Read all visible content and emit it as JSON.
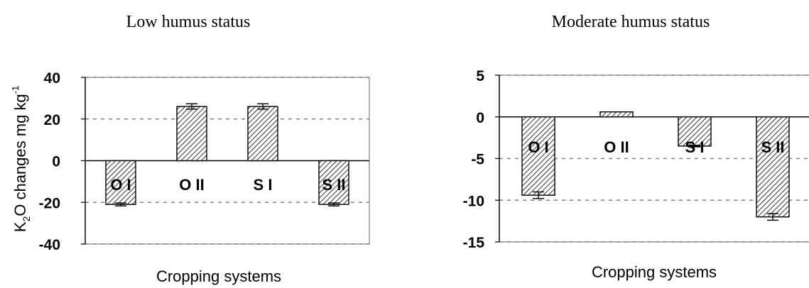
{
  "chart_data": [
    {
      "type": "bar",
      "title": "Low humus status",
      "xlabel": "Cropping systems",
      "ylabel_parts": [
        "K",
        "2",
        "O changes  mg kg",
        "-1"
      ],
      "ylim": [
        -40,
        40
      ],
      "yticks": [
        40,
        20,
        0,
        -20,
        -40
      ],
      "grid": true,
      "categories": [
        "O I",
        "O II",
        "S I",
        "S II"
      ],
      "values": [
        -21,
        26,
        26,
        -21
      ],
      "errors": [
        0.7,
        1.3,
        1.3,
        0.7
      ],
      "bar_fill": "#ffffff",
      "hatch_color": "#000000"
    },
    {
      "type": "bar",
      "title": "Moderate humus status",
      "xlabel": "Cropping systems",
      "ylim": [
        -15,
        5
      ],
      "yticks": [
        5,
        0,
        -5,
        -10,
        -15
      ],
      "grid": true,
      "categories": [
        "O I",
        "O II",
        "S I",
        "S II"
      ],
      "values": [
        -9.4,
        0.6,
        -3.5,
        -12
      ],
      "errors": [
        0.4,
        0,
        0.1,
        0.4
      ],
      "bar_fill": "#ffffff",
      "hatch_color": "#000000"
    }
  ]
}
